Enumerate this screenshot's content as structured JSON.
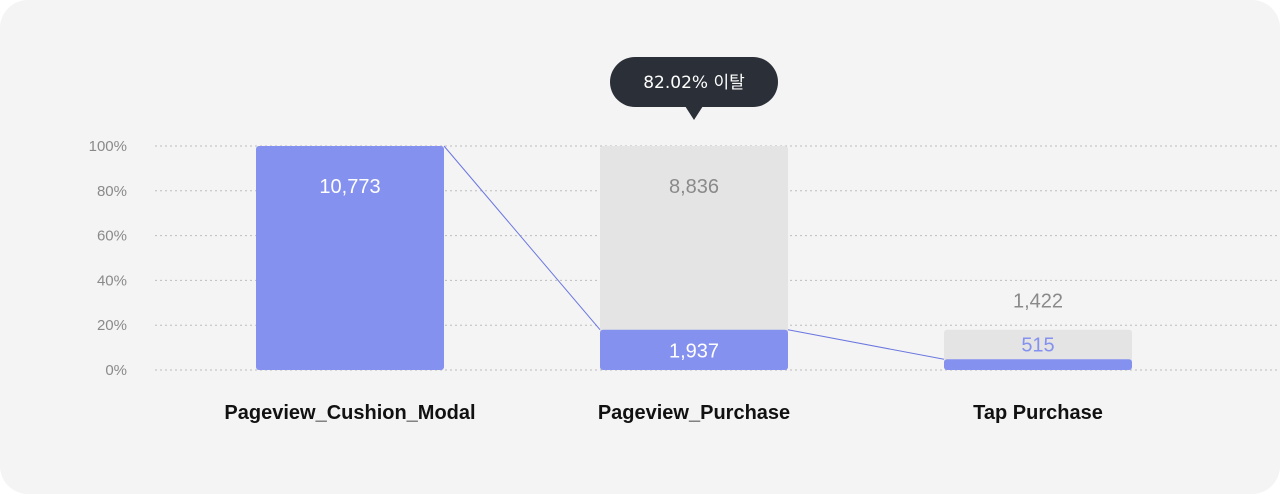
{
  "chart_data": {
    "type": "bar",
    "categories": [
      "Pageview_Cushion_Modal",
      "Pageview_Purchase",
      "Tap Purchase"
    ],
    "converted": [
      10773,
      1937,
      515
    ],
    "converted_labels": [
      "10,773",
      "1,937",
      "515"
    ],
    "dropped_labels": [
      "",
      "8,836",
      "1,422"
    ],
    "y_ticks": [
      "100%",
      "80%",
      "60%",
      "40%",
      "20%",
      "0%"
    ],
    "ylim": [
      0,
      100
    ],
    "grid": true,
    "tooltip": "82.02% 이탈",
    "colors": {
      "converted": "#8591ee",
      "dropped": "#e4e4e4",
      "converted_label_on_dark": "#ffffff",
      "converted_label_on_light": "#8591ee",
      "dropped_label": "#8a8a8a",
      "connector": "#6b77e0",
      "tooltip_bg": "#2b2f38",
      "grid": "#bdbdbd"
    }
  }
}
